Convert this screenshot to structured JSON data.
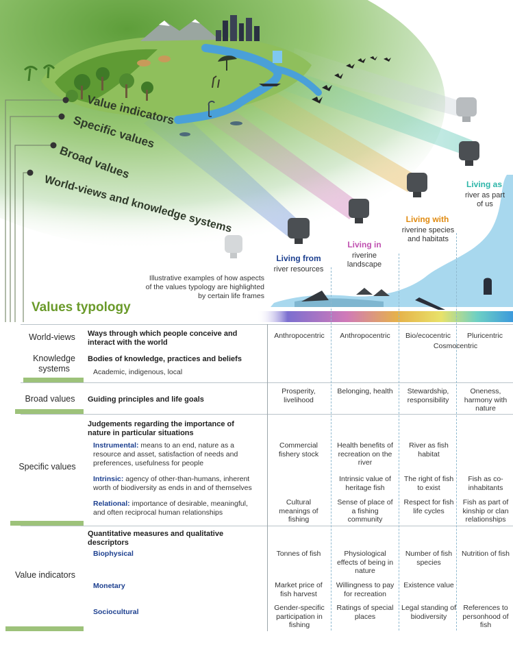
{
  "arc_labels": [
    "Value indicators",
    "Specific values",
    "Broad values",
    "World-views and knowledge systems"
  ],
  "illustrative_note": "Illustrative examples of how aspects of the values typology are highlighted by certain life frames",
  "life_frames": [
    {
      "title": "Living from",
      "subtitle": "river resources",
      "color": "#1c3f8f"
    },
    {
      "title": "Living in",
      "subtitle": "riverine landscape",
      "color": "#c050b0"
    },
    {
      "title": "Living with",
      "subtitle": "riverine species and habitats",
      "color": "#e08a10"
    },
    {
      "title": "Living as",
      "subtitle": "river as part of us",
      "color": "#2cb5a8"
    }
  ],
  "typology_title": "Values typology",
  "rows": {
    "worldviews": {
      "label": "World-views",
      "heading": "Ways through which people conceive and interact with the world",
      "cells": [
        "Anthropocentric",
        "Anthropocentric",
        "Bio/ecocentric",
        "Pluricentric"
      ],
      "span": "Cosmocentric"
    },
    "knowledge": {
      "label": "Knowledge systems",
      "heading": "Bodies of knowledge, practices and beliefs",
      "desc": "Academic, indigenous, local"
    },
    "broad": {
      "label": "Broad values",
      "heading": "Guiding principles and life goals",
      "cells": [
        "Prosperity, livelihood",
        "Belonging, health",
        "Stewardship, responsibility",
        "Oneness, harmony with nature"
      ]
    },
    "specific": {
      "label": "Specific values",
      "heading": "Judgements regarding the importance of nature in particular situations",
      "items": [
        {
          "key": "Instrumental:",
          "desc": " means to an end, nature as a resource and asset, satisfaction of needs and preferences, usefulness for people",
          "cells": [
            "Commercial fishery stock",
            "Health benefits of recreation on the river",
            "River as fish habitat",
            ""
          ]
        },
        {
          "key": "Intrinsic:",
          "desc": " agency of other-than-humans, inherent worth of biodiversity as ends in and of themselves",
          "cells": [
            "",
            "Intrinsic value of heritage fish",
            "The right of fish to exist",
            "Fish as co-inhabitants"
          ]
        },
        {
          "key": "Relational:",
          "desc": " importance of desirable, meaningful, and often reciprocal human relationships",
          "cells": [
            "Cultural meanings of fishing",
            "Sense of place of a fishing community",
            "Respect for fish life cycles",
            "Fish as part of kinship or clan relationships"
          ]
        }
      ]
    },
    "indicators": {
      "label": "Value indicators",
      "heading": "Quantitative measures and qualitative descriptors",
      "items": [
        {
          "key": "Biophysical",
          "cells": [
            "Tonnes of fish",
            "Physiological effects of being in nature",
            "Number of fish species",
            "Nutrition of fish"
          ]
        },
        {
          "key": "Monetary",
          "cells": [
            "Market price of fish harvest",
            "Willingness to pay for recreation",
            "Existence value",
            ""
          ]
        },
        {
          "key": "Sociocultural",
          "cells": [
            "Gender-specific participation in fishing",
            "Ratings of special places",
            "Legal standing of biodiversity",
            "References to personhood of fish"
          ]
        }
      ]
    }
  }
}
